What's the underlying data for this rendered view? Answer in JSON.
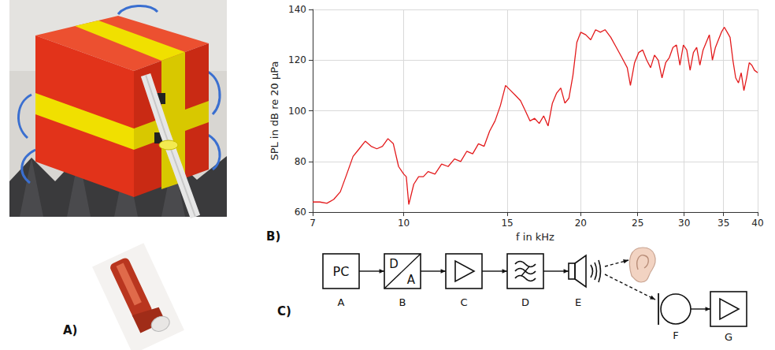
{
  "chart_data": {
    "type": "line",
    "xlabel": "f in kHz",
    "ylabel": "SPL in dB re 20 μPa",
    "log": "x",
    "grid": true,
    "color": "#e31a1c",
    "xlim": [
      7,
      40
    ],
    "xticks": [
      7,
      10,
      15,
      20,
      25,
      30,
      35,
      40
    ],
    "ylim": [
      60,
      140
    ],
    "yticks": [
      60,
      80,
      100,
      120,
      140
    ],
    "x": [
      7.0,
      7.2,
      7.4,
      7.6,
      7.8,
      8.0,
      8.2,
      8.4,
      8.6,
      8.8,
      9.0,
      9.2,
      9.4,
      9.6,
      9.8,
      10.0,
      10.1,
      10.2,
      10.4,
      10.6,
      10.8,
      11.0,
      11.3,
      11.6,
      11.9,
      12.2,
      12.5,
      12.8,
      13.1,
      13.4,
      13.7,
      14.0,
      14.3,
      14.6,
      14.9,
      15.2,
      15.5,
      15.8,
      16.1,
      16.4,
      16.7,
      17.0,
      17.3,
      17.6,
      17.9,
      18.2,
      18.5,
      18.8,
      19.1,
      19.4,
      19.7,
      20.0,
      20.4,
      20.8,
      21.2,
      21.6,
      22.0,
      22.5,
      23.0,
      23.5,
      24.0,
      24.3,
      24.7,
      25.1,
      25.5,
      25.9,
      26.3,
      26.7,
      27.1,
      27.5,
      27.9,
      28.3,
      28.7,
      29.1,
      29.5,
      29.9,
      30.3,
      30.7,
      31.1,
      31.5,
      31.9,
      32.3,
      32.7,
      33.1,
      33.5,
      33.9,
      34.3,
      34.7,
      35.1,
      35.5,
      35.9,
      36.3,
      36.7,
      37.1,
      37.5,
      37.9,
      38.3,
      38.7,
      39.1,
      39.5,
      40.0
    ],
    "values": [
      64,
      64,
      63.5,
      65,
      68,
      75,
      82,
      85,
      88,
      86,
      85,
      86,
      89,
      87,
      78,
      75,
      74,
      63,
      71,
      74,
      74,
      76,
      75,
      79,
      78,
      81,
      80,
      84,
      83,
      87,
      86,
      92,
      96,
      102,
      110,
      108,
      106,
      104,
      100,
      96,
      97,
      95,
      98,
      94,
      103,
      107,
      109,
      103,
      105,
      114,
      127,
      131,
      130,
      128,
      132,
      131,
      132,
      129,
      125,
      121,
      117,
      110,
      119,
      123,
      124,
      120,
      117,
      122,
      120,
      113,
      119,
      121,
      125,
      126,
      118,
      126,
      124,
      116,
      123,
      125,
      118,
      124,
      127,
      130,
      120,
      125,
      128,
      131,
      133,
      131,
      129,
      120,
      113,
      111,
      115,
      108,
      113,
      119,
      118,
      116,
      115
    ]
  },
  "panel_labels": [
    "A)",
    "B)",
    "C)"
  ],
  "diagram": {
    "blocks": [
      {
        "label": "A",
        "shape": "box",
        "text": "PC"
      },
      {
        "label": "B",
        "shape": "converter",
        "text": [
          "D",
          "A"
        ]
      },
      {
        "label": "C",
        "shape": "amplifier"
      },
      {
        "label": "D",
        "shape": "filter"
      },
      {
        "label": "E",
        "shape": "speaker"
      },
      {
        "label": "F",
        "shape": "microphone"
      },
      {
        "label": "G",
        "shape": "amplifier"
      }
    ]
  }
}
